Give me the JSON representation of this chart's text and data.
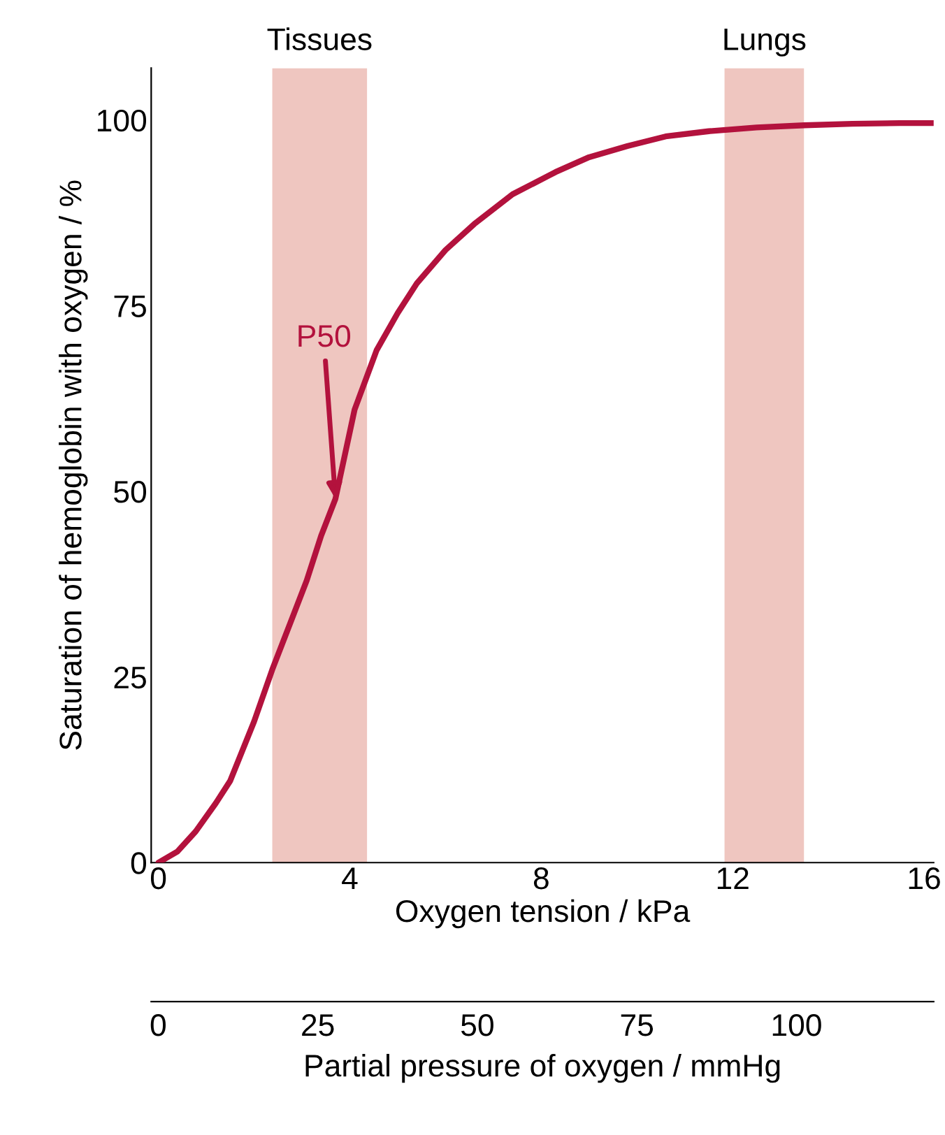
{
  "chart_data": {
    "type": "line",
    "xlabel": "Oxygen tension / kPa",
    "ylabel": "Saturation of hemoglobin with oxygen / %",
    "x2label": "Partial pressure of oxygen / mmHg",
    "series": [
      {
        "color": "#b3123d",
        "x": [
          0,
          0.4,
          0.78,
          1.2,
          1.5,
          2.0,
          2.38,
          2.8,
          3.1,
          3.4,
          3.7,
          4.1,
          4.56,
          5.0,
          5.4,
          6.0,
          6.6,
          7.4,
          8.3,
          9.0,
          9.8,
          10.6,
          11.5,
          12.5,
          13.5,
          14.5,
          15.5,
          16.2
        ],
        "values": [
          0,
          1.5,
          4.2,
          8,
          11,
          19,
          26,
          33,
          38,
          44,
          49,
          61,
          69,
          74,
          78,
          82.5,
          86,
          90,
          93,
          95,
          96.5,
          97.8,
          98.5,
          99,
          99.3,
          99.5,
          99.6,
          99.6
        ]
      }
    ],
    "xlim": [
      -0.15,
      16.2
    ],
    "xticks": [
      0,
      4,
      8,
      12,
      16
    ],
    "ylim": [
      0,
      107
    ],
    "yticks": [
      0,
      25,
      50,
      75,
      100
    ],
    "x2lim": [
      -1.1,
      121.5
    ],
    "x2ticks": [
      0,
      25,
      50,
      75,
      100
    ],
    "bands": [
      {
        "axis": "x",
        "from": 2.38,
        "to": 4.36,
        "label": "Tissues",
        "color": "#efc6c0"
      },
      {
        "axis": "x",
        "from": 11.83,
        "to": 13.49,
        "label": "Lungs",
        "color": "#efc6c0"
      }
    ],
    "annotations": [
      {
        "text": "P50",
        "x": 3.7,
        "y": 49
      }
    ],
    "grid": false,
    "marker": "none",
    "line_style": "solid"
  }
}
